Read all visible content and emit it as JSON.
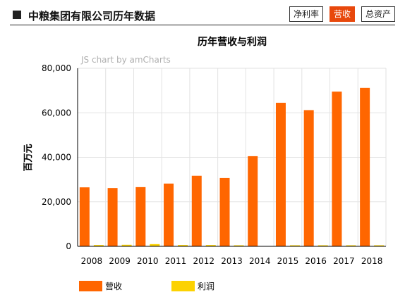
{
  "header": {
    "title": "中粮集团有限公司历年数据",
    "tabs": [
      {
        "label": "净利率",
        "active": false
      },
      {
        "label": "营收",
        "active": true
      },
      {
        "label": "总资产",
        "active": false
      }
    ]
  },
  "watermark": "JS chart by amCharts",
  "chart_data": {
    "type": "bar",
    "title": "历年营收与利润",
    "ylabel": "百万元",
    "xlabel": "",
    "ylim": [
      0,
      80000
    ],
    "yticks": [
      0,
      20000,
      40000,
      60000,
      80000
    ],
    "ytick_labels": [
      "0",
      "20,000",
      "40,000",
      "60,000",
      "80,000"
    ],
    "categories": [
      "2008",
      "2009",
      "2010",
      "2011",
      "2012",
      "2013",
      "2014",
      "2015",
      "2016",
      "2017",
      "2018"
    ],
    "series": [
      {
        "name": "营收",
        "color": "#ff6600",
        "values": [
          26500,
          26200,
          26600,
          28200,
          31700,
          30700,
          40500,
          64500,
          61200,
          69500,
          71200
        ]
      },
      {
        "name": "利润",
        "color": "#fcd202",
        "values": [
          600,
          700,
          1000,
          600,
          600,
          150,
          0,
          300,
          300,
          300,
          300
        ]
      }
    ],
    "grid": true,
    "legend_position": "bottom-left"
  }
}
